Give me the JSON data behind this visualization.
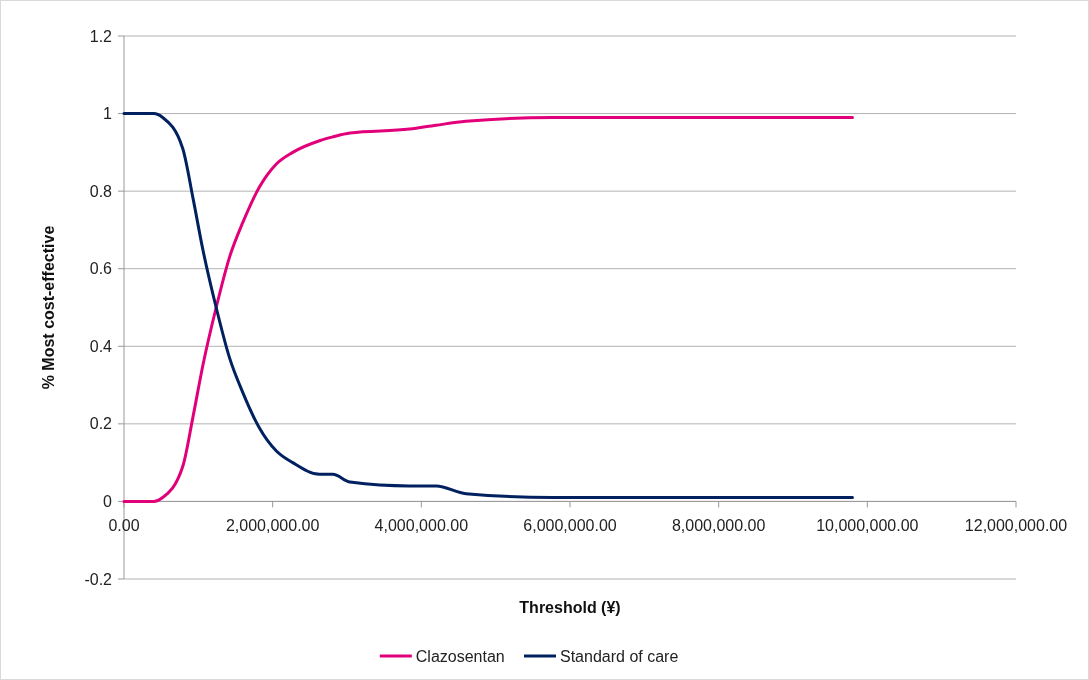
{
  "chart_data": {
    "type": "line",
    "xlabel": "Threshold (¥)",
    "ylabel": "% Most cost-effective",
    "x": [
      0,
      200000,
      400000,
      520000,
      790000,
      930000,
      1060000,
      1240000,
      1420000,
      1600000,
      1820000,
      2050000,
      2270000,
      2630000,
      2810000,
      3040000,
      3840000,
      4200000,
      4600000,
      5770000,
      6840000,
      7000000,
      9090000,
      9800000
    ],
    "series": [
      {
        "name": "Clazosentan",
        "color": "#e2007a",
        "values": [
          0,
          0,
          0,
          0.01,
          0.09,
          0.22,
          0.35,
          0.5,
          0.63,
          0.72,
          0.81,
          0.87,
          0.9,
          0.93,
          0.94,
          0.95,
          0.96,
          0.97,
          0.98,
          0.99,
          0.99,
          0.99,
          0.99,
          0.99
        ]
      },
      {
        "name": "Standard of care",
        "color": "#002060",
        "values": [
          1,
          1,
          1,
          0.99,
          0.91,
          0.78,
          0.65,
          0.5,
          0.37,
          0.28,
          0.19,
          0.13,
          0.1,
          0.07,
          0.07,
          0.05,
          0.04,
          0.04,
          0.02,
          0.01,
          0.01,
          0.01,
          0.01,
          0.01
        ]
      }
    ],
    "xlim": [
      0,
      12000000
    ],
    "xticks": [
      {
        "value": 0,
        "label": "0.00"
      },
      {
        "value": 2000000,
        "label": "2,000,000.00"
      },
      {
        "value": 4000000,
        "label": "4,000,000.00"
      },
      {
        "value": 6000000,
        "label": "6,000,000.00"
      },
      {
        "value": 8000000,
        "label": "8,000,000.00"
      },
      {
        "value": 10000000,
        "label": "10,000,000.00"
      },
      {
        "value": 12000000,
        "label": "12,000,000.00"
      }
    ],
    "ylim": [
      -0.2,
      1.2
    ],
    "yticks": [
      -0.2,
      0,
      0.2,
      0.4,
      0.6,
      0.8,
      1,
      1.2
    ],
    "grid": "y",
    "legend": "bottom",
    "marker": "none",
    "line_style": "solid"
  }
}
